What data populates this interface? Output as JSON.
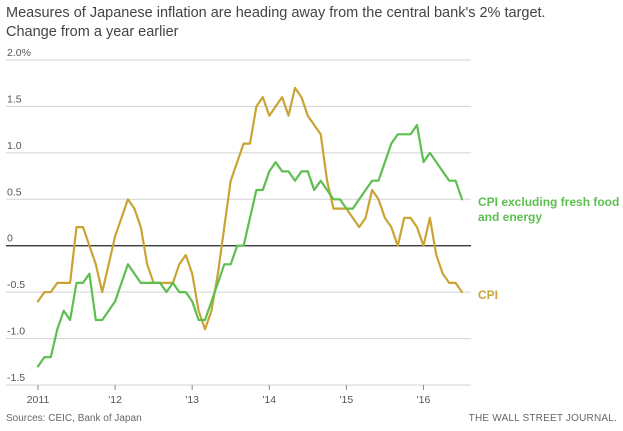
{
  "title": "Measures of Japanese inflation are heading away from the central bank's 2% target.",
  "subtitle": "Change from a year earlier",
  "source": "Sources: CEIC, Bank of Japan",
  "publisher": "THE WALL STREET JOURNAL.",
  "colors": {
    "cpi": "#c9a435",
    "core": "#5cbf4f",
    "grid": "#d3d3d3",
    "zero": "#222222"
  },
  "chart_data": {
    "type": "line",
    "x_tick_labels": [
      "2011",
      "'12",
      "'13",
      "'14",
      "'15",
      "'16"
    ],
    "x_tick_years": [
      2011,
      2012,
      2013,
      2014,
      2015,
      2016
    ],
    "x_range": [
      "2011-01",
      "2016-07"
    ],
    "y_tick_labels": [
      "2.0%",
      "1.5",
      "1.0",
      "0.5",
      "0",
      "-0.5",
      "-1.0",
      "-1.5"
    ],
    "y_tick_values": [
      2.0,
      1.5,
      1.0,
      0.5,
      0,
      -0.5,
      -1.0,
      -1.5
    ],
    "ylim": [
      -1.5,
      2.0
    ],
    "grid": true,
    "start": "2011-01",
    "series": [
      {
        "name": "CPI excluding fresh food and energy",
        "label_lines": [
          "CPI excluding fresh food",
          "and energy"
        ],
        "color_key": "core",
        "values": [
          -1.3,
          -1.2,
          -1.2,
          -0.9,
          -0.7,
          -0.8,
          -0.4,
          -0.4,
          -0.3,
          -0.8,
          -0.8,
          -0.7,
          -0.6,
          -0.4,
          -0.2,
          -0.3,
          -0.4,
          -0.4,
          -0.4,
          -0.4,
          -0.5,
          -0.4,
          -0.5,
          -0.5,
          -0.6,
          -0.8,
          -0.8,
          -0.6,
          -0.4,
          -0.2,
          -0.2,
          0.0,
          0.0,
          0.3,
          0.6,
          0.6,
          0.8,
          0.9,
          0.8,
          0.8,
          0.7,
          0.8,
          0.8,
          0.6,
          0.7,
          0.6,
          0.5,
          0.5,
          0.4,
          0.4,
          0.5,
          0.6,
          0.7,
          0.7,
          0.9,
          1.1,
          1.2,
          1.2,
          1.2,
          1.3,
          0.9,
          1.0,
          0.9,
          0.8,
          0.7,
          0.7,
          0.5
        ]
      },
      {
        "name": "CPI",
        "label_lines": [
          "CPI"
        ],
        "color_key": "cpi",
        "values": [
          -0.6,
          -0.5,
          -0.5,
          -0.4,
          -0.4,
          -0.4,
          0.2,
          0.2,
          0.0,
          -0.2,
          -0.5,
          -0.2,
          0.1,
          0.3,
          0.5,
          0.4,
          0.2,
          -0.2,
          -0.4,
          -0.4,
          -0.4,
          -0.4,
          -0.2,
          -0.1,
          -0.3,
          -0.7,
          -0.9,
          -0.7,
          -0.3,
          0.2,
          0.7,
          0.9,
          1.1,
          1.1,
          1.5,
          1.6,
          1.4,
          1.5,
          1.6,
          1.4,
          1.7,
          1.6,
          1.4,
          1.3,
          1.2,
          0.7,
          0.4,
          0.4,
          0.4,
          0.3,
          0.2,
          0.3,
          0.6,
          0.5,
          0.3,
          0.2,
          0.0,
          0.3,
          0.3,
          0.2,
          0.0,
          0.3,
          -0.1,
          -0.3,
          -0.4,
          -0.4,
          -0.5
        ]
      }
    ]
  }
}
